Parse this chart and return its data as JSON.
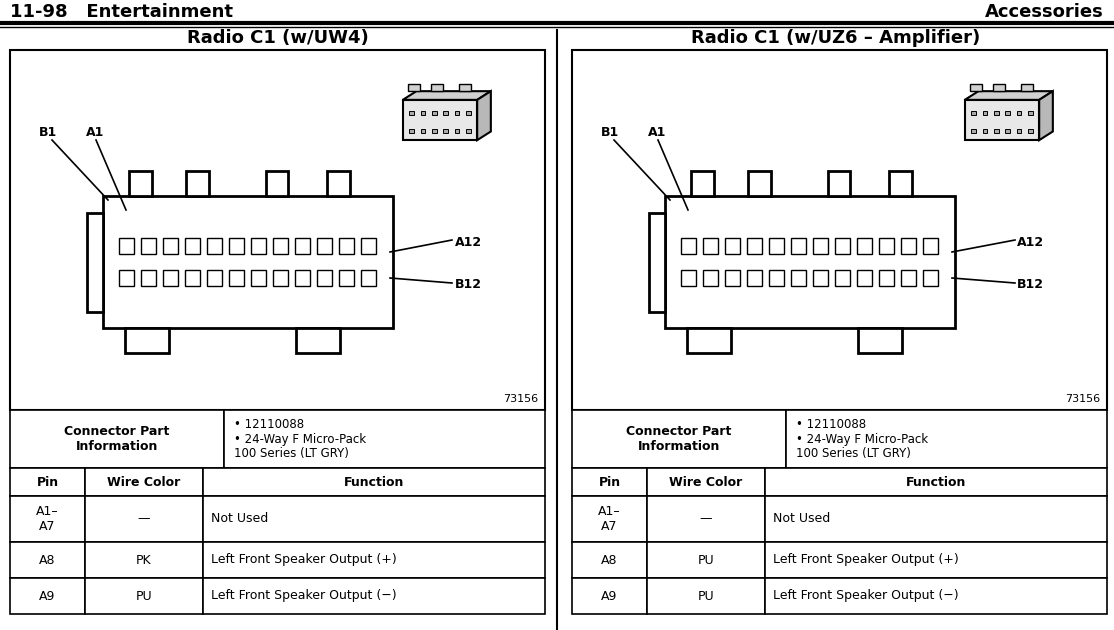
{
  "header_left": "11-98   Entertainment",
  "header_right": "Accessories",
  "header_line_color": "#000000",
  "bg_color": "#ffffff",
  "left_title": "Radio C1 (w/UW4)",
  "right_title": "Radio C1 (w/UZ6 – Amplifier)",
  "connector_part_label": "Connector Part\nInformation",
  "connector_info_bullets": [
    "12110088",
    "24-Way F Micro-Pack\n100 Series (LT GRY)"
  ],
  "table_headers": [
    "Pin",
    "Wire Color",
    "Function"
  ],
  "left_table_rows": [
    [
      "A1–\nA7",
      "—",
      "Not Used"
    ],
    [
      "A8",
      "PK",
      "Left Front Speaker Output (+)"
    ],
    [
      "A9",
      "PU",
      "Left Front Speaker Output (−)"
    ]
  ],
  "right_table_rows": [
    [
      "A1–\nA7",
      "—",
      "Not Used"
    ],
    [
      "A8",
      "PU",
      "Left Front Speaker Output (+)"
    ],
    [
      "A9",
      "PU",
      "Left Front Speaker Output (−)"
    ]
  ],
  "diagram_number": "73156",
  "label_A1": "A1",
  "label_B1": "B1",
  "label_A12": "A12",
  "label_B12": "B12"
}
